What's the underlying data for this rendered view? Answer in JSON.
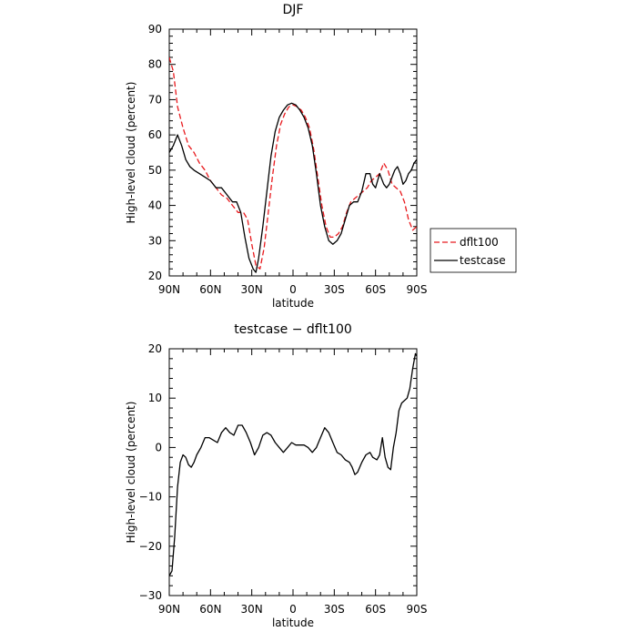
{
  "chart_data": [
    {
      "type": "line",
      "title": "DJF",
      "xlabel": "latitude",
      "ylabel": "High-level cloud (percent)",
      "xlim": [
        90,
        -90
      ],
      "ylim": [
        20,
        90
      ],
      "x_ticks": [
        90,
        60,
        30,
        0,
        -30,
        -60,
        -90
      ],
      "x_tick_labels": [
        "90N",
        "60N",
        "30N",
        "0",
        "30S",
        "60S",
        "90S"
      ],
      "y_ticks": [
        20,
        30,
        40,
        50,
        60,
        70,
        80,
        90
      ],
      "y_tick_labels": [
        "20",
        "30",
        "40",
        "50",
        "60",
        "70",
        "80",
        "90"
      ],
      "grid": false,
      "legend": "right",
      "series": [
        {
          "name": "dflt100",
          "color": "#e8191d",
          "dash": "dashed",
          "x": [
            90,
            87,
            84,
            80,
            76,
            72,
            68,
            64,
            60,
            56,
            52,
            48,
            44,
            40,
            36,
            33,
            30,
            27,
            24,
            21,
            18,
            15,
            12,
            9,
            6,
            3,
            0,
            -3,
            -6,
            -9,
            -12,
            -15,
            -18,
            -21,
            -24,
            -27,
            -30,
            -33,
            -36,
            -39,
            -42,
            -45,
            -48,
            -51,
            -54,
            -57,
            -60,
            -63,
            -66,
            -69,
            -72,
            -75,
            -78,
            -81,
            -84,
            -87,
            -90
          ],
          "y": [
            82,
            78,
            68,
            62,
            57,
            55,
            52,
            50,
            47,
            45,
            43,
            42,
            40,
            38,
            38,
            36,
            29,
            23,
            22,
            28,
            38,
            48,
            57,
            63,
            66,
            68,
            68.5,
            68,
            67,
            65,
            62,
            56,
            48,
            40,
            34,
            31,
            31,
            32,
            34,
            38,
            41,
            42,
            43,
            44,
            45,
            47,
            48,
            49,
            52,
            50,
            46,
            45,
            44,
            41,
            36,
            33,
            34
          ]
        },
        {
          "name": "testcase",
          "color": "#000000",
          "dash": "solid",
          "x": [
            90,
            87,
            84,
            81,
            78,
            75,
            72,
            68,
            64,
            60,
            56,
            52,
            48,
            44,
            41,
            38,
            35,
            32,
            29,
            27,
            25,
            22,
            19,
            16,
            13,
            10,
            7,
            4,
            1,
            -2,
            -5,
            -8,
            -11,
            -14,
            -17,
            -20,
            -23,
            -26,
            -29,
            -32,
            -35,
            -38,
            -41,
            -44,
            -47,
            -50,
            -53,
            -56,
            -58,
            -60,
            -63,
            -66,
            -68,
            -70,
            -72,
            -74,
            -76,
            -78,
            -80,
            -82,
            -84,
            -86,
            -88,
            -90
          ],
          "y": [
            55,
            57,
            60,
            57,
            53,
            51,
            50,
            49,
            48,
            47,
            45,
            45,
            43,
            41,
            41,
            38,
            31,
            25,
            22,
            21,
            25,
            34,
            44,
            54,
            61,
            65,
            67,
            68.5,
            69,
            68.5,
            67,
            65,
            62,
            57,
            49,
            40,
            34,
            30,
            29,
            30,
            32,
            36,
            40,
            41,
            41,
            44,
            49,
            49,
            46,
            45,
            49,
            46,
            45,
            46,
            48,
            50,
            51,
            49,
            46,
            47,
            49,
            50,
            52,
            53
          ]
        }
      ]
    },
    {
      "type": "line",
      "title": "testcase − dflt100",
      "xlabel": "latitude",
      "ylabel": "High-level cloud (percent)",
      "xlim": [
        90,
        -90
      ],
      "ylim": [
        -30,
        20
      ],
      "x_ticks": [
        90,
        60,
        30,
        0,
        -30,
        -60,
        -90
      ],
      "x_tick_labels": [
        "90N",
        "60N",
        "30N",
        "0",
        "30S",
        "60S",
        "90S"
      ],
      "y_ticks": [
        -30,
        -20,
        -10,
        0,
        10,
        20
      ],
      "y_tick_labels": [
        "−30",
        "−20",
        "−10",
        "0",
        "10",
        "20"
      ],
      "grid": false,
      "series": [
        {
          "color": "#000000",
          "dash": "solid",
          "x": [
            90,
            88,
            86,
            84,
            82,
            80,
            78,
            76,
            74,
            72,
            70,
            67,
            64,
            61,
            58,
            55,
            52,
            49,
            46,
            43,
            40,
            37,
            34,
            31,
            28,
            25,
            22,
            19,
            16,
            13,
            10,
            7,
            4,
            1,
            -2,
            -5,
            -8,
            -11,
            -14,
            -17,
            -20,
            -23,
            -26,
            -29,
            -32,
            -35,
            -38,
            -41,
            -43,
            -45,
            -47,
            -50,
            -53,
            -56,
            -58,
            -61,
            -63,
            -65,
            -67,
            -69,
            -71,
            -73,
            -75,
            -77,
            -79,
            -81,
            -83,
            -85,
            -87,
            -89,
            -90
          ],
          "y": [
            -26,
            -25,
            -18,
            -8,
            -3,
            -1.5,
            -2,
            -3.5,
            -4,
            -3,
            -1.5,
            0,
            2,
            2,
            1.5,
            1,
            3,
            4,
            3,
            2.5,
            4.5,
            4.5,
            3,
            1,
            -1.5,
            0,
            2.5,
            3,
            2.5,
            1,
            0,
            -1,
            0,
            1,
            0.5,
            0.5,
            0.5,
            0,
            -1,
            0,
            2,
            4,
            3,
            1,
            -1,
            -1.5,
            -2.5,
            -3,
            -4,
            -5.5,
            -5,
            -3,
            -1.5,
            -1,
            -2,
            -2.5,
            -1.5,
            2,
            -2,
            -4,
            -4.5,
            0,
            3,
            7.5,
            9,
            9.5,
            10,
            12,
            16,
            19,
            18.5
          ]
        }
      ]
    }
  ]
}
